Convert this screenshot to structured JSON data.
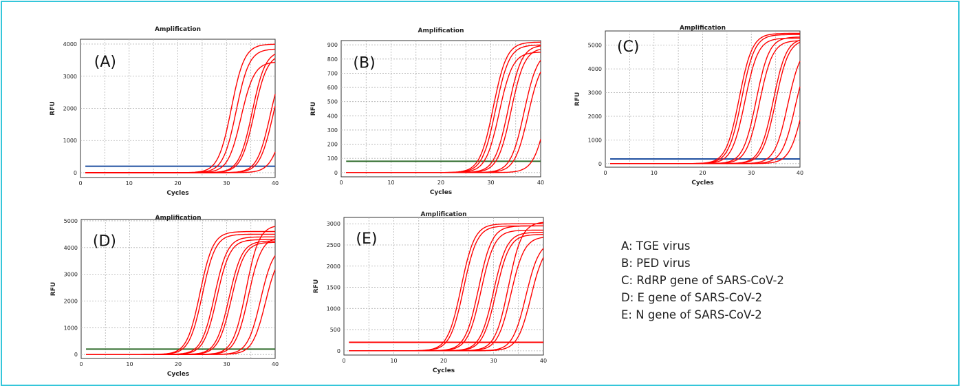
{
  "colors": {
    "border": "#35c6da",
    "curve": "#ff0000",
    "threshold_blue": "#1f4fa0",
    "threshold_green": "#2e6b2a"
  },
  "legend": [
    "A: TGE virus",
    "B: PED virus",
    "C: RdRP gene of SARS-CoV-2",
    "D: E gene of SARS-CoV-2",
    "E: N gene of SARS-CoV-2"
  ],
  "chart_data": [
    {
      "type": "line",
      "panel": "(A)",
      "title": "Amplification",
      "xlabel": "Cycles",
      "ylabel": "RFU",
      "xlim": [
        0,
        40
      ],
      "ylim": [
        -150,
        4150
      ],
      "xticks": [
        0,
        10,
        20,
        30,
        40
      ],
      "yticks": [
        0,
        1000,
        2000,
        3000,
        4000
      ],
      "threshold": {
        "value": 200,
        "color": "#1f4fa0"
      },
      "series": [
        {
          "ct": 28.5,
          "plateau": 4000
        },
        {
          "ct": 29.5,
          "plateau": 3850
        },
        {
          "ct": 30.5,
          "plateau": 3450
        },
        {
          "ct": 32.8,
          "plateau": 3800
        },
        {
          "ct": 33.2,
          "plateau": 3700
        },
        {
          "ct": 36.5,
          "plateau": 3600
        },
        {
          "ct": 37.0,
          "plateau": 3500
        },
        {
          "ct": 39.0,
          "plateau": 2600
        }
      ]
    },
    {
      "type": "line",
      "panel": "(B)",
      "title": "Amplification",
      "xlabel": "Cycles",
      "ylabel": "RFU",
      "xlim": [
        0,
        40
      ],
      "ylim": [
        -30,
        930
      ],
      "xticks": [
        0,
        10,
        20,
        30,
        40
      ],
      "yticks": [
        0,
        100,
        200,
        300,
        400,
        500,
        600,
        700,
        800,
        900
      ],
      "threshold": {
        "value": 80,
        "color": "#2e6b2a"
      },
      "series": [
        {
          "ct": 28.0,
          "plateau": 920
        },
        {
          "ct": 28.5,
          "plateau": 900
        },
        {
          "ct": 29.2,
          "plateau": 850
        },
        {
          "ct": 31.0,
          "plateau": 900
        },
        {
          "ct": 31.6,
          "plateau": 880
        },
        {
          "ct": 34.2,
          "plateau": 860
        },
        {
          "ct": 35.0,
          "plateau": 820
        },
        {
          "ct": 38.8,
          "plateau": 850
        }
      ]
    },
    {
      "type": "line",
      "panel": "(C)",
      "title": "Amplification",
      "xlabel": "Cycles",
      "ylabel": "RFU",
      "xlim": [
        0,
        40
      ],
      "ylim": [
        -150,
        5600
      ],
      "xticks": [
        0,
        10,
        20,
        30,
        40
      ],
      "yticks": [
        0,
        1000,
        2000,
        3000,
        4000,
        5000
      ],
      "threshold": {
        "value": 200,
        "color": "#1f4fa0"
      },
      "series": [
        {
          "ct": 25.0,
          "plateau": 5500
        },
        {
          "ct": 25.5,
          "plateau": 5450
        },
        {
          "ct": 26.2,
          "plateau": 5300
        },
        {
          "ct": 28.5,
          "plateau": 5350
        },
        {
          "ct": 29.2,
          "plateau": 5200
        },
        {
          "ct": 32.0,
          "plateau": 5300
        },
        {
          "ct": 32.5,
          "plateau": 5250
        },
        {
          "ct": 35.0,
          "plateau": 5000
        },
        {
          "ct": 36.5,
          "plateau": 4800
        },
        {
          "ct": 38.0,
          "plateau": 4500
        }
      ]
    },
    {
      "type": "line",
      "panel": "(D)",
      "title": "Amplification",
      "xlabel": "Cycles",
      "ylabel": "RFU",
      "xlim": [
        0,
        40
      ],
      "ylim": [
        -150,
        5050
      ],
      "xticks": [
        0,
        10,
        20,
        30,
        40
      ],
      "yticks": [
        0,
        1000,
        2000,
        3000,
        4000,
        5000
      ],
      "threshold": {
        "value": 200,
        "color": "#2e6b2a"
      },
      "series": [
        {
          "ct": 22.0,
          "plateau": 4600
        },
        {
          "ct": 22.5,
          "plateau": 4500
        },
        {
          "ct": 25.0,
          "plateau": 4400
        },
        {
          "ct": 25.5,
          "plateau": 4300
        },
        {
          "ct": 28.0,
          "plateau": 4250
        },
        {
          "ct": 28.5,
          "plateau": 4200
        },
        {
          "ct": 31.5,
          "plateau": 4850
        },
        {
          "ct": 32.0,
          "plateau": 4400
        },
        {
          "ct": 34.5,
          "plateau": 4100
        },
        {
          "ct": 35.5,
          "plateau": 3900
        }
      ]
    },
    {
      "type": "line",
      "panel": "(E)",
      "title": "Amplification",
      "xlabel": "Cycles",
      "ylabel": "RFU",
      "xlim": [
        0,
        40
      ],
      "ylim": [
        -100,
        3150
      ],
      "xticks": [
        0,
        10,
        20,
        30,
        40
      ],
      "yticks": [
        0,
        500,
        1000,
        1500,
        2000,
        2500,
        3000
      ],
      "threshold": {
        "value": 200,
        "color": "#ff0000"
      },
      "series": [
        {
          "ct": 21.0,
          "plateau": 3000
        },
        {
          "ct": 21.5,
          "plateau": 2950
        },
        {
          "ct": 24.5,
          "plateau": 2950
        },
        {
          "ct": 25.0,
          "plateau": 2850
        },
        {
          "ct": 27.5,
          "plateau": 2800
        },
        {
          "ct": 28.0,
          "plateau": 2750
        },
        {
          "ct": 30.5,
          "plateau": 3050
        },
        {
          "ct": 31.0,
          "plateau": 2700
        },
        {
          "ct": 34.0,
          "plateau": 2600
        },
        {
          "ct": 35.0,
          "plateau": 2550
        }
      ]
    }
  ]
}
